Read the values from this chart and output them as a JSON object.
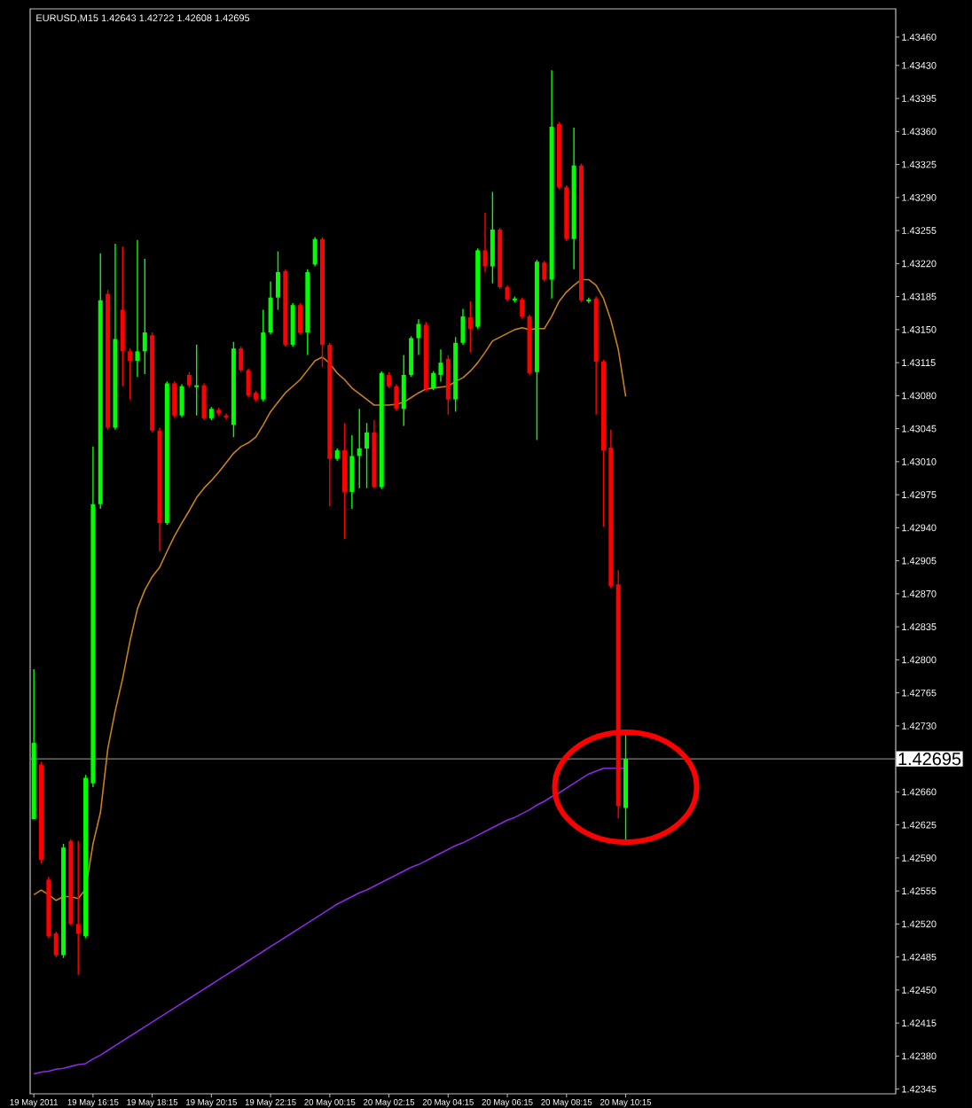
{
  "chart_data": {
    "type": "candlestick",
    "title": "EURUSD,M15  1.42643 1.42722 1.42608 1.42695",
    "categories": [
      "19 May 2011",
      null,
      null,
      null,
      null,
      null,
      null,
      null,
      "19 May 16:15",
      null,
      null,
      null,
      null,
      null,
      null,
      null,
      "19 May 18:15",
      null,
      null,
      null,
      null,
      null,
      null,
      null,
      "19 May 20:15",
      null,
      null,
      null,
      null,
      null,
      null,
      null,
      "19 May 22:15",
      null,
      null,
      null,
      null,
      null,
      null,
      null,
      "20 May 00:15",
      null,
      null,
      null,
      null,
      null,
      null,
      null,
      "20 May 02:15",
      null,
      null,
      null,
      null,
      null,
      null,
      null,
      "20 May 04:15",
      null,
      null,
      null,
      null,
      null,
      null,
      null,
      "20 May 06:15",
      null,
      null,
      null,
      null,
      null,
      null,
      null,
      "20 May 08:15",
      null,
      null,
      null,
      null,
      null,
      null,
      null,
      "20 May 10:15",
      null,
      null,
      null,
      null,
      null,
      null,
      null,
      null,
      null,
      null,
      null,
      null,
      null,
      null,
      null,
      null,
      null,
      null,
      null,
      null,
      null,
      null,
      null,
      null,
      null,
      null,
      null,
      null,
      null,
      null,
      null,
      null,
      null,
      null,
      null,
      null
    ],
    "ohlc": [
      [
        1.42631,
        1.4279,
        1.42631,
        1.42712
      ],
      [
        1.42689,
        1.42692,
        1.42584,
        1.42588
      ],
      [
        1.42567,
        1.4257,
        1.42505,
        1.42507
      ],
      [
        1.4251,
        1.42512,
        1.42485,
        1.42487
      ],
      [
        1.42487,
        1.42605,
        1.42484,
        1.42601
      ],
      [
        1.42608,
        1.4261,
        1.42518,
        1.4252
      ],
      [
        1.4252,
        1.42608,
        1.42466,
        1.4251
      ],
      [
        1.42507,
        1.42678,
        1.42505,
        1.42675
      ],
      [
        1.42669,
        1.43026,
        1.42665,
        1.42965
      ],
      [
        1.42965,
        1.43231,
        1.4296,
        1.43181
      ],
      [
        1.43188,
        1.43192,
        1.43044,
        1.43046
      ],
      [
        1.43046,
        1.43241,
        1.43044,
        1.4314
      ],
      [
        1.43171,
        1.43238,
        1.4309,
        1.43127
      ],
      [
        1.43127,
        1.4313,
        1.43076,
        1.43117
      ],
      [
        1.43117,
        1.43245,
        1.431,
        1.43127
      ],
      [
        1.43127,
        1.43225,
        1.43103,
        1.43147
      ],
      [
        1.43144,
        1.43147,
        1.43041,
        1.43043
      ],
      [
        1.43043,
        1.43046,
        1.42915,
        1.42945
      ],
      [
        1.42945,
        1.43095,
        1.42943,
        1.43093
      ],
      [
        1.43093,
        1.43095,
        1.43057,
        1.43059
      ],
      [
        1.43059,
        1.43092,
        1.43057,
        1.4309
      ],
      [
        1.43102,
        1.43105,
        1.43089,
        1.43091
      ],
      [
        1.43089,
        1.43134,
        1.43059,
        1.43091
      ],
      [
        1.43091,
        1.43093,
        1.43054,
        1.43056
      ],
      [
        1.43056,
        1.43068,
        1.43054,
        1.43066
      ],
      [
        1.43065,
        1.43067,
        1.43059,
        1.43061
      ],
      [
        1.43059,
        1.43061,
        1.43055,
        1.43057
      ],
      [
        1.43049,
        1.43137,
        1.43036,
        1.4313
      ],
      [
        1.4313,
        1.43132,
        1.43105,
        1.43107
      ],
      [
        1.43107,
        1.43109,
        1.43078,
        1.4308
      ],
      [
        1.43083,
        1.43085,
        1.43074,
        1.43076
      ],
      [
        1.43076,
        1.43171,
        1.43074,
        1.43147
      ],
      [
        1.43147,
        1.43201,
        1.43145,
        1.43184
      ],
      [
        1.43184,
        1.43233,
        1.43171,
        1.43211
      ],
      [
        1.43212,
        1.43214,
        1.43132,
        1.43134
      ],
      [
        1.43134,
        1.43178,
        1.43132,
        1.43176
      ],
      [
        1.43176,
        1.43178,
        1.43145,
        1.43147
      ],
      [
        1.43147,
        1.43214,
        1.43123,
        1.43211
      ],
      [
        1.43219,
        1.43248,
        1.43217,
        1.43246
      ],
      [
        1.43246,
        1.43248,
        1.4311,
        1.43134
      ],
      [
        1.43134,
        1.43136,
        1.42963,
        1.43013
      ],
      [
        1.43013,
        1.43024,
        1.43011,
        1.43022
      ],
      [
        1.43022,
        1.43051,
        1.42928,
        1.42978
      ],
      [
        1.42978,
        1.43038,
        1.4296,
        1.43016
      ],
      [
        1.43016,
        1.43066,
        1.42982,
        1.43024
      ],
      [
        1.43024,
        1.43051,
        1.42982,
        1.43041
      ],
      [
        1.43041,
        1.43054,
        1.42982,
        1.42983
      ],
      [
        1.42983,
        1.43106,
        1.42981,
        1.43104
      ],
      [
        1.43102,
        1.43105,
        1.43088,
        1.4309
      ],
      [
        1.4309,
        1.43092,
        1.43064,
        1.43066
      ],
      [
        1.43066,
        1.43123,
        1.43048,
        1.43102
      ],
      [
        1.43102,
        1.43143,
        1.431,
        1.43141
      ],
      [
        1.43141,
        1.43161,
        1.43123,
        1.43156
      ],
      [
        1.43155,
        1.43158,
        1.43085,
        1.43087
      ],
      [
        1.43088,
        1.43106,
        1.43086,
        1.43104
      ],
      [
        1.43102,
        1.43129,
        1.43095,
        1.43115
      ],
      [
        1.43119,
        1.43123,
        1.4306,
        1.43076
      ],
      [
        1.43076,
        1.43142,
        1.43063,
        1.43136
      ],
      [
        1.43136,
        1.43172,
        1.43134,
        1.43164
      ],
      [
        1.43163,
        1.4318,
        1.43126,
        1.43151
      ],
      [
        1.43153,
        1.43236,
        1.43151,
        1.43234
      ],
      [
        1.43234,
        1.43274,
        1.43211,
        1.43217
      ],
      [
        1.43217,
        1.43296,
        1.43199,
        1.43256
      ],
      [
        1.43256,
        1.43258,
        1.43193,
        1.43195
      ],
      [
        1.43195,
        1.43197,
        1.4318,
        1.43182
      ],
      [
        1.43181,
        1.43185,
        1.43179,
        1.43183
      ],
      [
        1.43182,
        1.43184,
        1.43162,
        1.43164
      ],
      [
        1.43164,
        1.43166,
        1.43102,
        1.43104
      ],
      [
        1.43105,
        1.43224,
        1.43033,
        1.43222
      ],
      [
        1.43221,
        1.43223,
        1.43201,
        1.43203
      ],
      [
        1.43203,
        1.43425,
        1.43183,
        1.43365
      ],
      [
        1.43368,
        1.4337,
        1.43299,
        1.43301
      ],
      [
        1.43301,
        1.43303,
        1.43244,
        1.43246
      ],
      [
        1.43246,
        1.43364,
        1.43214,
        1.43324
      ],
      [
        1.43324,
        1.43326,
        1.43179,
        1.43181
      ],
      [
        1.4318,
        1.43184,
        1.43178,
        1.43182
      ],
      [
        1.43183,
        1.43185,
        1.4306,
        1.43116
      ],
      [
        1.43116,
        1.43118,
        1.42941,
        1.43022
      ],
      [
        1.43025,
        1.43044,
        1.42876,
        1.42878
      ],
      [
        1.4288,
        1.42895,
        1.42632,
        1.42645
      ],
      [
        1.42643,
        1.42722,
        1.42608,
        1.42695
      ],
      null,
      null,
      null,
      null,
      null,
      null,
      null,
      null,
      null,
      null,
      null,
      null,
      null,
      null,
      null,
      null,
      null,
      null,
      null,
      null,
      null,
      null,
      null,
      null,
      null,
      null,
      null,
      null,
      null,
      null,
      null,
      null,
      null,
      null,
      null,
      null
    ],
    "colors": [
      "#00ff00",
      "#ff0000",
      "#ff0000",
      "#ff0000",
      "#00ff00",
      "#ff0000",
      "#ff0000",
      "#00ff00",
      "#00ff00",
      "#00ff00",
      "#ff0000",
      "#00ff00",
      "#ff0000",
      "#ff0000",
      "#00ff00",
      "#00ff00",
      "#ff0000",
      "#ff0000",
      "#00ff00",
      "#ff0000",
      "#00ff00",
      "#ff0000",
      "#00ff00",
      "#ff0000",
      "#00ff00",
      "#ff0000",
      "#ff0000",
      "#00ff00",
      "#ff0000",
      "#ff0000",
      "#ff0000",
      "#00ff00",
      "#00ff00",
      "#00ff00",
      "#ff0000",
      "#00ff00",
      "#ff0000",
      "#00ff00",
      "#00ff00",
      "#ff0000",
      "#ff0000",
      "#00ff00",
      "#ff0000",
      "#00ff00",
      "#00ff00",
      "#00ff00",
      "#ff0000",
      "#00ff00",
      "#ff0000",
      "#ff0000",
      "#00ff00",
      "#00ff00",
      "#00ff00",
      "#ff0000",
      "#00ff00",
      "#00ff00",
      "#ff0000",
      "#00ff00",
      "#00ff00",
      "#ff0000",
      "#00ff00",
      "#ff0000",
      "#00ff00",
      "#ff0000",
      "#ff0000",
      "#00ff00",
      "#ff0000",
      "#ff0000",
      "#00ff00",
      "#ff0000",
      "#00ff00",
      "#ff0000",
      "#ff0000",
      "#00ff00",
      "#ff0000",
      "#00ff00",
      "#ff0000",
      "#ff0000",
      "#ff0000",
      "#ff0000",
      "#00ff00",
      null,
      null,
      null,
      null,
      null,
      null,
      null,
      null,
      null,
      null,
      null,
      null,
      null,
      null,
      null,
      null,
      null,
      null,
      null,
      null,
      null,
      null,
      null,
      null,
      null,
      null,
      null,
      null,
      null,
      null,
      null,
      null,
      null,
      null,
      null,
      null
    ],
    "series": [
      {
        "type": "line",
        "color": "#c8801e",
        "values": [
          1.42551,
          1.42556,
          1.42551,
          1.42545,
          1.42549,
          1.42549,
          1.42547,
          1.42557,
          1.42605,
          1.42638,
          1.42706,
          1.42746,
          1.4278,
          1.4282,
          1.42854,
          1.42874,
          1.42888,
          1.42898,
          1.42915,
          1.42931,
          1.42945,
          1.42958,
          1.42972,
          1.42982,
          1.4299,
          1.42999,
          1.43009,
          1.43019,
          1.43026,
          1.4303,
          1.43036,
          1.43049,
          1.43063,
          1.43073,
          1.43083,
          1.4309,
          1.43097,
          1.43107,
          1.43117,
          1.43121,
          1.43114,
          1.43104,
          1.43097,
          1.43088,
          1.43082,
          1.43076,
          1.4307,
          1.4307,
          1.4307,
          1.43071,
          1.43073,
          1.43078,
          1.43083,
          1.43087,
          1.43088,
          1.43089,
          1.4309,
          1.43095,
          1.43099,
          1.43106,
          1.43115,
          1.43126,
          1.43138,
          1.43142,
          1.43146,
          1.4315,
          1.43152,
          1.4315,
          1.43151,
          1.43151,
          1.43164,
          1.4318,
          1.4319,
          1.43197,
          1.43203,
          1.43203,
          1.43197,
          1.43183,
          1.4316,
          1.43129,
          1.43079,
          null,
          null,
          null,
          null,
          null,
          null,
          null,
          null,
          null,
          null,
          null,
          null,
          null,
          null,
          null,
          null,
          null,
          null,
          null,
          null,
          null,
          null,
          null,
          null,
          null,
          null,
          null,
          null,
          null,
          null,
          null,
          null,
          null,
          null,
          null,
          null
        ]
      },
      {
        "type": "line",
        "color": "#8a2be2",
        "values": [
          1.42361,
          1.42363,
          1.42364,
          1.42366,
          1.42367,
          1.42369,
          1.42371,
          1.42372,
          1.42377,
          1.42381,
          1.42386,
          1.42391,
          1.42396,
          1.42401,
          1.42406,
          1.42411,
          1.42416,
          1.42421,
          1.42426,
          1.42431,
          1.42436,
          1.42441,
          1.42446,
          1.42451,
          1.42456,
          1.42461,
          1.42466,
          1.42471,
          1.42476,
          1.42481,
          1.42486,
          1.42491,
          1.42496,
          1.42501,
          1.42506,
          1.42511,
          1.42516,
          1.42521,
          1.42526,
          1.42531,
          1.42536,
          1.42541,
          1.42545,
          1.42549,
          1.42553,
          1.42556,
          1.4256,
          1.42564,
          1.42568,
          1.42572,
          1.42576,
          1.4258,
          1.42583,
          1.42587,
          1.42591,
          1.42595,
          1.42599,
          1.42603,
          1.42606,
          1.4261,
          1.42614,
          1.42618,
          1.42622,
          1.42626,
          1.4263,
          1.42633,
          1.42637,
          1.42641,
          1.42646,
          1.4265,
          1.42655,
          1.42659,
          1.42664,
          1.42669,
          1.42674,
          1.42679,
          1.42682,
          1.42685,
          1.42685,
          1.42685,
          1.42685,
          null,
          null,
          null,
          null,
          null,
          null,
          null,
          null,
          null,
          null,
          null,
          null,
          null,
          null,
          null,
          null,
          null,
          null,
          null,
          null,
          null,
          null,
          null,
          null,
          null,
          null,
          null,
          null,
          null,
          null,
          null,
          null,
          null,
          null,
          null,
          null
        ]
      }
    ],
    "ylim": [
      1.4234,
      1.4349
    ],
    "yticks": [
      {
        "value": 1.4346,
        "label": "1.43460"
      },
      {
        "value": 1.4343,
        "label": "1.43430"
      },
      1.43395,
      {
        "value": 1.4336,
        "label": "1.43360"
      },
      1.43325,
      {
        "value": 1.4329,
        "label": "1.43290"
      },
      1.43255,
      {
        "value": 1.4322,
        "label": "1.43220"
      },
      1.43185,
      {
        "value": 1.4315,
        "label": "1.43150"
      },
      1.43115,
      {
        "value": 1.4308,
        "label": "1.43080"
      },
      1.43045,
      {
        "value": 1.4301,
        "label": "1.43010"
      },
      1.42975,
      {
        "value": 1.4294,
        "label": "1.42940"
      },
      1.42905,
      {
        "value": 1.4287,
        "label": "1.42870"
      },
      1.42835,
      {
        "value": 1.428,
        "label": "1.42800"
      },
      1.42765,
      {
        "value": 1.4273,
        "label": "1.42730"
      },
      {
        "value": 1.4266,
        "label": "1.42660"
      },
      1.42625,
      {
        "value": 1.4259,
        "label": "1.42590"
      },
      1.42555,
      {
        "value": 1.4252,
        "label": "1.42520"
      },
      1.42485,
      {
        "value": 1.4245,
        "label": "1.42450"
      },
      1.42415,
      {
        "value": 1.4238,
        "label": "1.42380"
      },
      1.42345
    ],
    "ref_lines": [
      {
        "axis": "y",
        "value": 1.42695,
        "label": "1.42695",
        "color": "#808080"
      }
    ],
    "annotations": [
      {
        "x": "20 May 10:15"
      }
    ]
  }
}
